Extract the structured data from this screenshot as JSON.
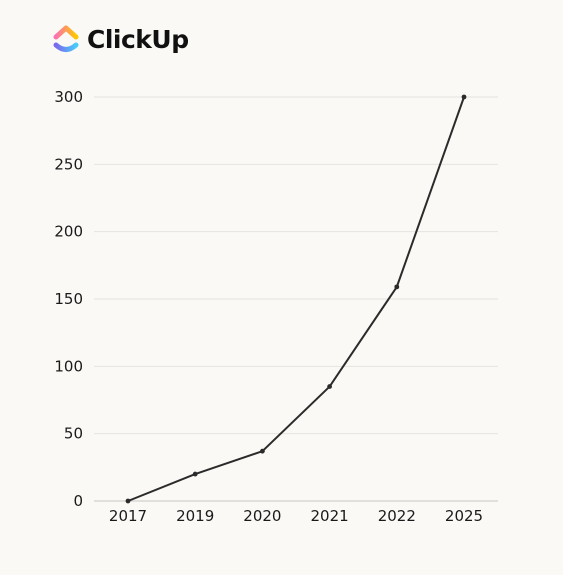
{
  "brand": {
    "name": "ClickUp",
    "logo_icon": "clickup-logo-icon",
    "gradient_colors": [
      "#fd71af",
      "#ffc800",
      "#49ccf9",
      "#7b68ee"
    ]
  },
  "chart_data": {
    "type": "line",
    "title": "",
    "xlabel": "",
    "ylabel": "",
    "categories": [
      "2017",
      "2019",
      "2020",
      "2021",
      "2022",
      "2025"
    ],
    "values": [
      0,
      20,
      37,
      85,
      159,
      300
    ],
    "ylim": [
      0,
      300
    ],
    "yticks": [
      0,
      50,
      100,
      150,
      200,
      250,
      300
    ],
    "grid": "horizontal",
    "legend": "none",
    "line_color": "#2b2b2b",
    "grid_color": "#e6e4df"
  }
}
